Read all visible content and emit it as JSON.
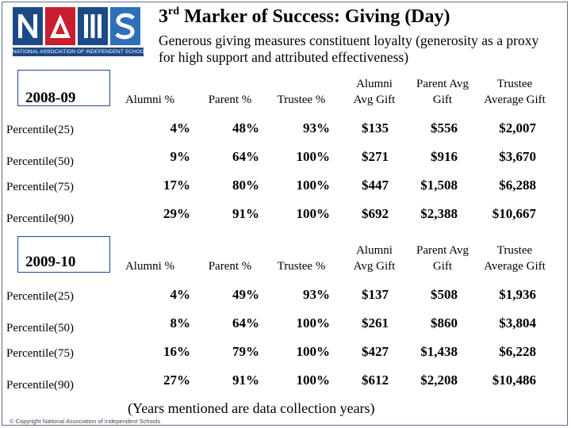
{
  "logo": {
    "letters": [
      "N",
      "A",
      "I",
      "S"
    ],
    "caption": "NATIONAL ASSOCIATION OF INDEPENDENT SCHOOLS"
  },
  "title": {
    "prefix": "3",
    "sup": "rd",
    "text": "Marker of Success: Giving (Day)"
  },
  "subtitle": "Generous giving measures constituent loyalty (generosity as a proxy for high support and attributed effectiveness)",
  "tables": [
    {
      "year": "2008-09",
      "headers": [
        "Alumni %",
        "Parent %",
        "Trustee %",
        "Alumni Avg Gift",
        "Parent Avg Gift",
        "Trustee Average Gift"
      ],
      "rows": [
        {
          "label": "Percentile(25)",
          "values": [
            "4%",
            "48%",
            "93%",
            "$135",
            "$556",
            "$2,007"
          ]
        },
        {
          "label": "Percentile(50)",
          "values": [
            "9%",
            "64%",
            "100%",
            "$271",
            "$916",
            "$3,670"
          ]
        },
        {
          "label": "Percentile(75)",
          "values": [
            "17%",
            "80%",
            "100%",
            "$447",
            "$1,508",
            "$6,288"
          ]
        },
        {
          "label": "Percentile(90)",
          "values": [
            "29%",
            "91%",
            "100%",
            "$692",
            "$2,388",
            "$10,667"
          ]
        }
      ]
    },
    {
      "year": "2009-10",
      "headers": [
        "Alumni %",
        "Parent %",
        "Trustee %",
        "Alumni Avg Gift",
        "Parent Avg Gift",
        "Trustee Average Gift"
      ],
      "rows": [
        {
          "label": "Percentile(25)",
          "values": [
            "4%",
            "49%",
            "93%",
            "$137",
            "$508",
            "$1,936"
          ]
        },
        {
          "label": "Percentile(50)",
          "values": [
            "8%",
            "64%",
            "100%",
            "$261",
            "$860",
            "$3,804"
          ]
        },
        {
          "label": "Percentile(75)",
          "values": [
            "16%",
            "79%",
            "100%",
            "$427",
            "$1,438",
            "$6,228"
          ]
        },
        {
          "label": "Percentile(90)",
          "values": [
            "27%",
            "91%",
            "100%",
            "$612",
            "$2,208",
            "$10,486"
          ]
        }
      ]
    }
  ],
  "footnote": "(Years mentioned are data collection years)",
  "copyright": "© Copyright National Association of Independent Schools"
}
